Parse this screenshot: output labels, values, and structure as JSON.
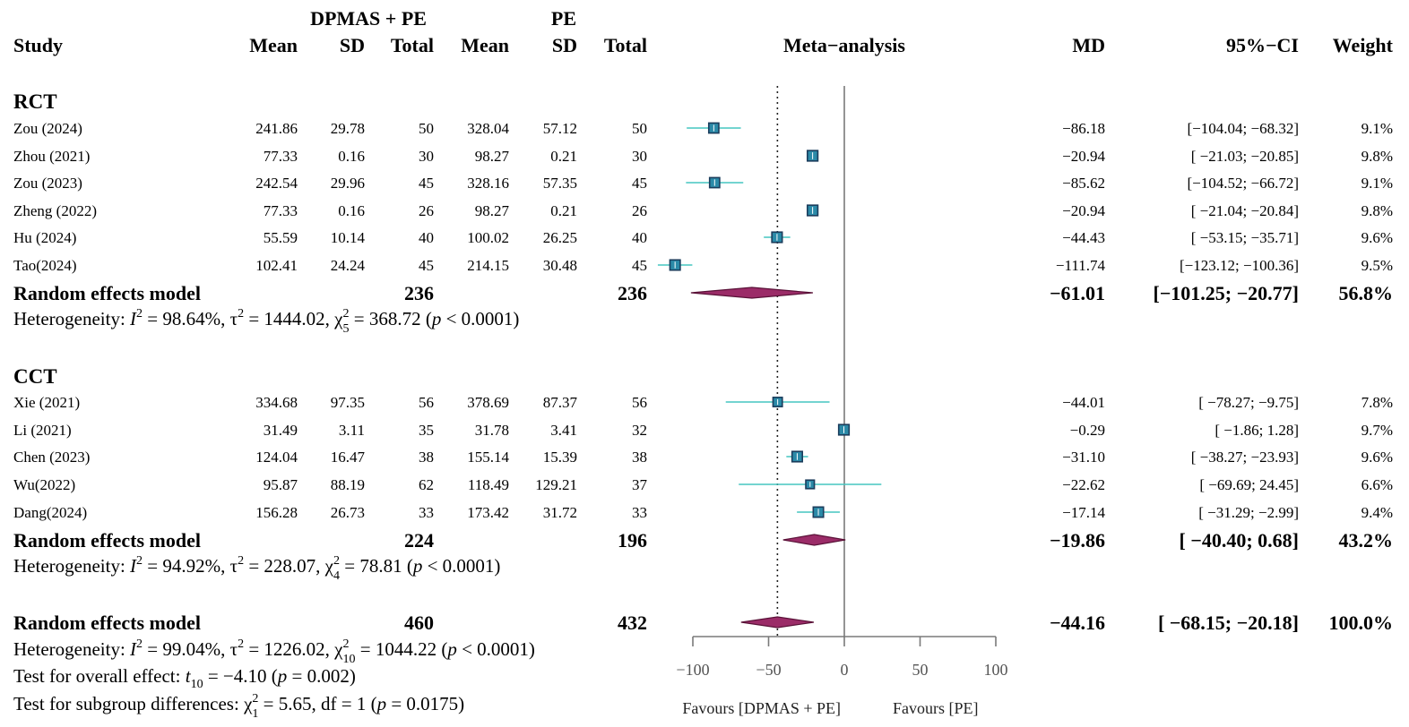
{
  "chart_data": {
    "type": "forest",
    "title": "Meta−analysis",
    "columns": {
      "study": "Study",
      "group1_name": "DPMAS + PE",
      "group2_name": "PE",
      "mean": "Mean",
      "sd": "SD",
      "total": "Total",
      "md": "MD",
      "ci": "95%−CI",
      "weight": "Weight"
    },
    "x_axis": {
      "ticks": [
        -100,
        -50,
        0,
        50,
        100
      ],
      "tick_labels": [
        "−100",
        "−50",
        "0",
        "50",
        "100"
      ],
      "xlim": [
        -100,
        100
      ],
      "null_line": 0,
      "pooled_line": -44.16,
      "favours_left": "Favours [DPMAS + PE]",
      "favours_right": "Favours [PE]"
    },
    "subgroups": [
      {
        "name": "RCT",
        "studies": [
          {
            "study": "Zou (2024)",
            "m1": "241.86",
            "sd1": "29.78",
            "n1": "50",
            "m2": "328.04",
            "sd2": "57.12",
            "n2": "50",
            "md_text": "−86.18",
            "ci_text": "[−104.04; −68.32]",
            "weight_text": "9.1%",
            "md": -86.18,
            "lo": -104.04,
            "hi": -68.32,
            "w": 9.1
          },
          {
            "study": "Zhou (2021)",
            "m1": "77.33",
            "sd1": "0.16",
            "n1": "30",
            "m2": "98.27",
            "sd2": "0.21",
            "n2": "30",
            "md_text": "−20.94",
            "ci_text": "[ −21.03; −20.85]",
            "weight_text": "9.8%",
            "md": -20.94,
            "lo": -21.03,
            "hi": -20.85,
            "w": 9.8
          },
          {
            "study": "Zou (2023)",
            "m1": "242.54",
            "sd1": "29.96",
            "n1": "45",
            "m2": "328.16",
            "sd2": "57.35",
            "n2": "45",
            "md_text": "−85.62",
            "ci_text": "[−104.52; −66.72]",
            "weight_text": "9.1%",
            "md": -85.62,
            "lo": -104.52,
            "hi": -66.72,
            "w": 9.1
          },
          {
            "study": "Zheng (2022)",
            "m1": "77.33",
            "sd1": "0.16",
            "n1": "26",
            "m2": "98.27",
            "sd2": "0.21",
            "n2": "26",
            "md_text": "−20.94",
            "ci_text": "[ −21.04; −20.84]",
            "weight_text": "9.8%",
            "md": -20.94,
            "lo": -21.04,
            "hi": -20.84,
            "w": 9.8
          },
          {
            "study": "Hu (2024)",
            "m1": "55.59",
            "sd1": "10.14",
            "n1": "40",
            "m2": "100.02",
            "sd2": "26.25",
            "n2": "40",
            "md_text": "−44.43",
            "ci_text": "[ −53.15; −35.71]",
            "weight_text": "9.6%",
            "md": -44.43,
            "lo": -53.15,
            "hi": -35.71,
            "w": 9.6
          },
          {
            "study": "Tao(2024)",
            "m1": "102.41",
            "sd1": "24.24",
            "n1": "45",
            "m2": "214.15",
            "sd2": "30.48",
            "n2": "45",
            "md_text": "−111.74",
            "ci_text": "[−123.12; −100.36]",
            "weight_text": "9.5%",
            "md": -111.74,
            "lo": -123.12,
            "hi": -100.36,
            "w": 9.5
          }
        ],
        "model": {
          "label": "Random effects model",
          "n1": "236",
          "n2": "236",
          "md_text": "−61.01",
          "ci_text": "[−101.25; −20.77]",
          "weight_text": "56.8%",
          "md": -61.01,
          "lo": -101.25,
          "hi": -20.77
        },
        "heterogeneity": {
          "prefix": "Heterogeneity: ",
          "i2": "98.64%",
          "tau2": "1444.02",
          "chi_df": "5",
          "chi": "368.72",
          "p": "< 0.0001"
        }
      },
      {
        "name": "CCT",
        "studies": [
          {
            "study": "Xie (2021)",
            "m1": "334.68",
            "sd1": "97.35",
            "n1": "56",
            "m2": "378.69",
            "sd2": "87.37",
            "n2": "56",
            "md_text": "−44.01",
            "ci_text": "[ −78.27; −9.75]",
            "weight_text": "7.8%",
            "md": -44.01,
            "lo": -78.27,
            "hi": -9.75,
            "w": 7.8
          },
          {
            "study": "Li (2021)",
            "m1": "31.49",
            "sd1": "3.11",
            "n1": "35",
            "m2": "31.78",
            "sd2": "3.41",
            "n2": "32",
            "md_text": "−0.29",
            "ci_text": "[ −1.86; 1.28]",
            "weight_text": "9.7%",
            "md": -0.29,
            "lo": -1.86,
            "hi": 1.28,
            "w": 9.7
          },
          {
            "study": "Chen (2023)",
            "m1": "124.04",
            "sd1": "16.47",
            "n1": "38",
            "m2": "155.14",
            "sd2": "15.39",
            "n2": "38",
            "md_text": "−31.10",
            "ci_text": "[ −38.27; −23.93]",
            "weight_text": "9.6%",
            "md": -31.1,
            "lo": -38.27,
            "hi": -23.93,
            "w": 9.6
          },
          {
            "study": "Wu(2022)",
            "m1": "95.87",
            "sd1": "88.19",
            "n1": "62",
            "m2": "118.49",
            "sd2": "129.21",
            "n2": "37",
            "md_text": "−22.62",
            "ci_text": "[ −69.69; 24.45]",
            "weight_text": "6.6%",
            "md": -22.62,
            "lo": -69.69,
            "hi": 24.45,
            "w": 6.6
          },
          {
            "study": "Dang(2024)",
            "m1": "156.28",
            "sd1": "26.73",
            "n1": "33",
            "m2": "173.42",
            "sd2": "31.72",
            "n2": "33",
            "md_text": "−17.14",
            "ci_text": "[ −31.29; −2.99]",
            "weight_text": "9.4%",
            "md": -17.14,
            "lo": -31.29,
            "hi": -2.99,
            "w": 9.4
          }
        ],
        "model": {
          "label": "Random effects model",
          "n1": "224",
          "n2": "196",
          "md_text": "−19.86",
          "ci_text": "[ −40.40; 0.68]",
          "weight_text": "43.2%",
          "md": -19.86,
          "lo": -40.4,
          "hi": 0.68
        },
        "heterogeneity": {
          "prefix": "Heterogeneity: ",
          "i2": "94.92%",
          "tau2": "228.07",
          "chi_df": "4",
          "chi": "78.81",
          "p": "< 0.0001"
        }
      }
    ],
    "overall": {
      "model": {
        "label": "Random effects model",
        "n1": "460",
        "n2": "432",
        "md_text": "−44.16",
        "ci_text": "[ −68.15; −20.18]",
        "weight_text": "100.0%",
        "md": -44.16,
        "lo": -68.15,
        "hi": -20.18
      },
      "heterogeneity": {
        "prefix": "Heterogeneity: ",
        "i2": "99.04%",
        "tau2": "1226.02",
        "chi_df": "10",
        "chi": "1044.22",
        "p": "< 0.0001"
      },
      "overall_effect": {
        "prefix": "Test for overall effect: ",
        "t_df": "10",
        "t": "−4.10",
        "p": "= 0.002"
      },
      "subgroup_test": {
        "prefix": "Test for subgroup differences: ",
        "chi_df": "1",
        "chi": "5.65",
        "df": "df = 1",
        "p": "= 0.0175"
      }
    },
    "colors": {
      "square": "#2b8aa8",
      "square_edge": "#1b3d5c",
      "ci_line": "#45c5c0",
      "diamond": "#9b2c68",
      "diamond_edge": "#5a1238",
      "axis": "#7a7a7a"
    }
  }
}
